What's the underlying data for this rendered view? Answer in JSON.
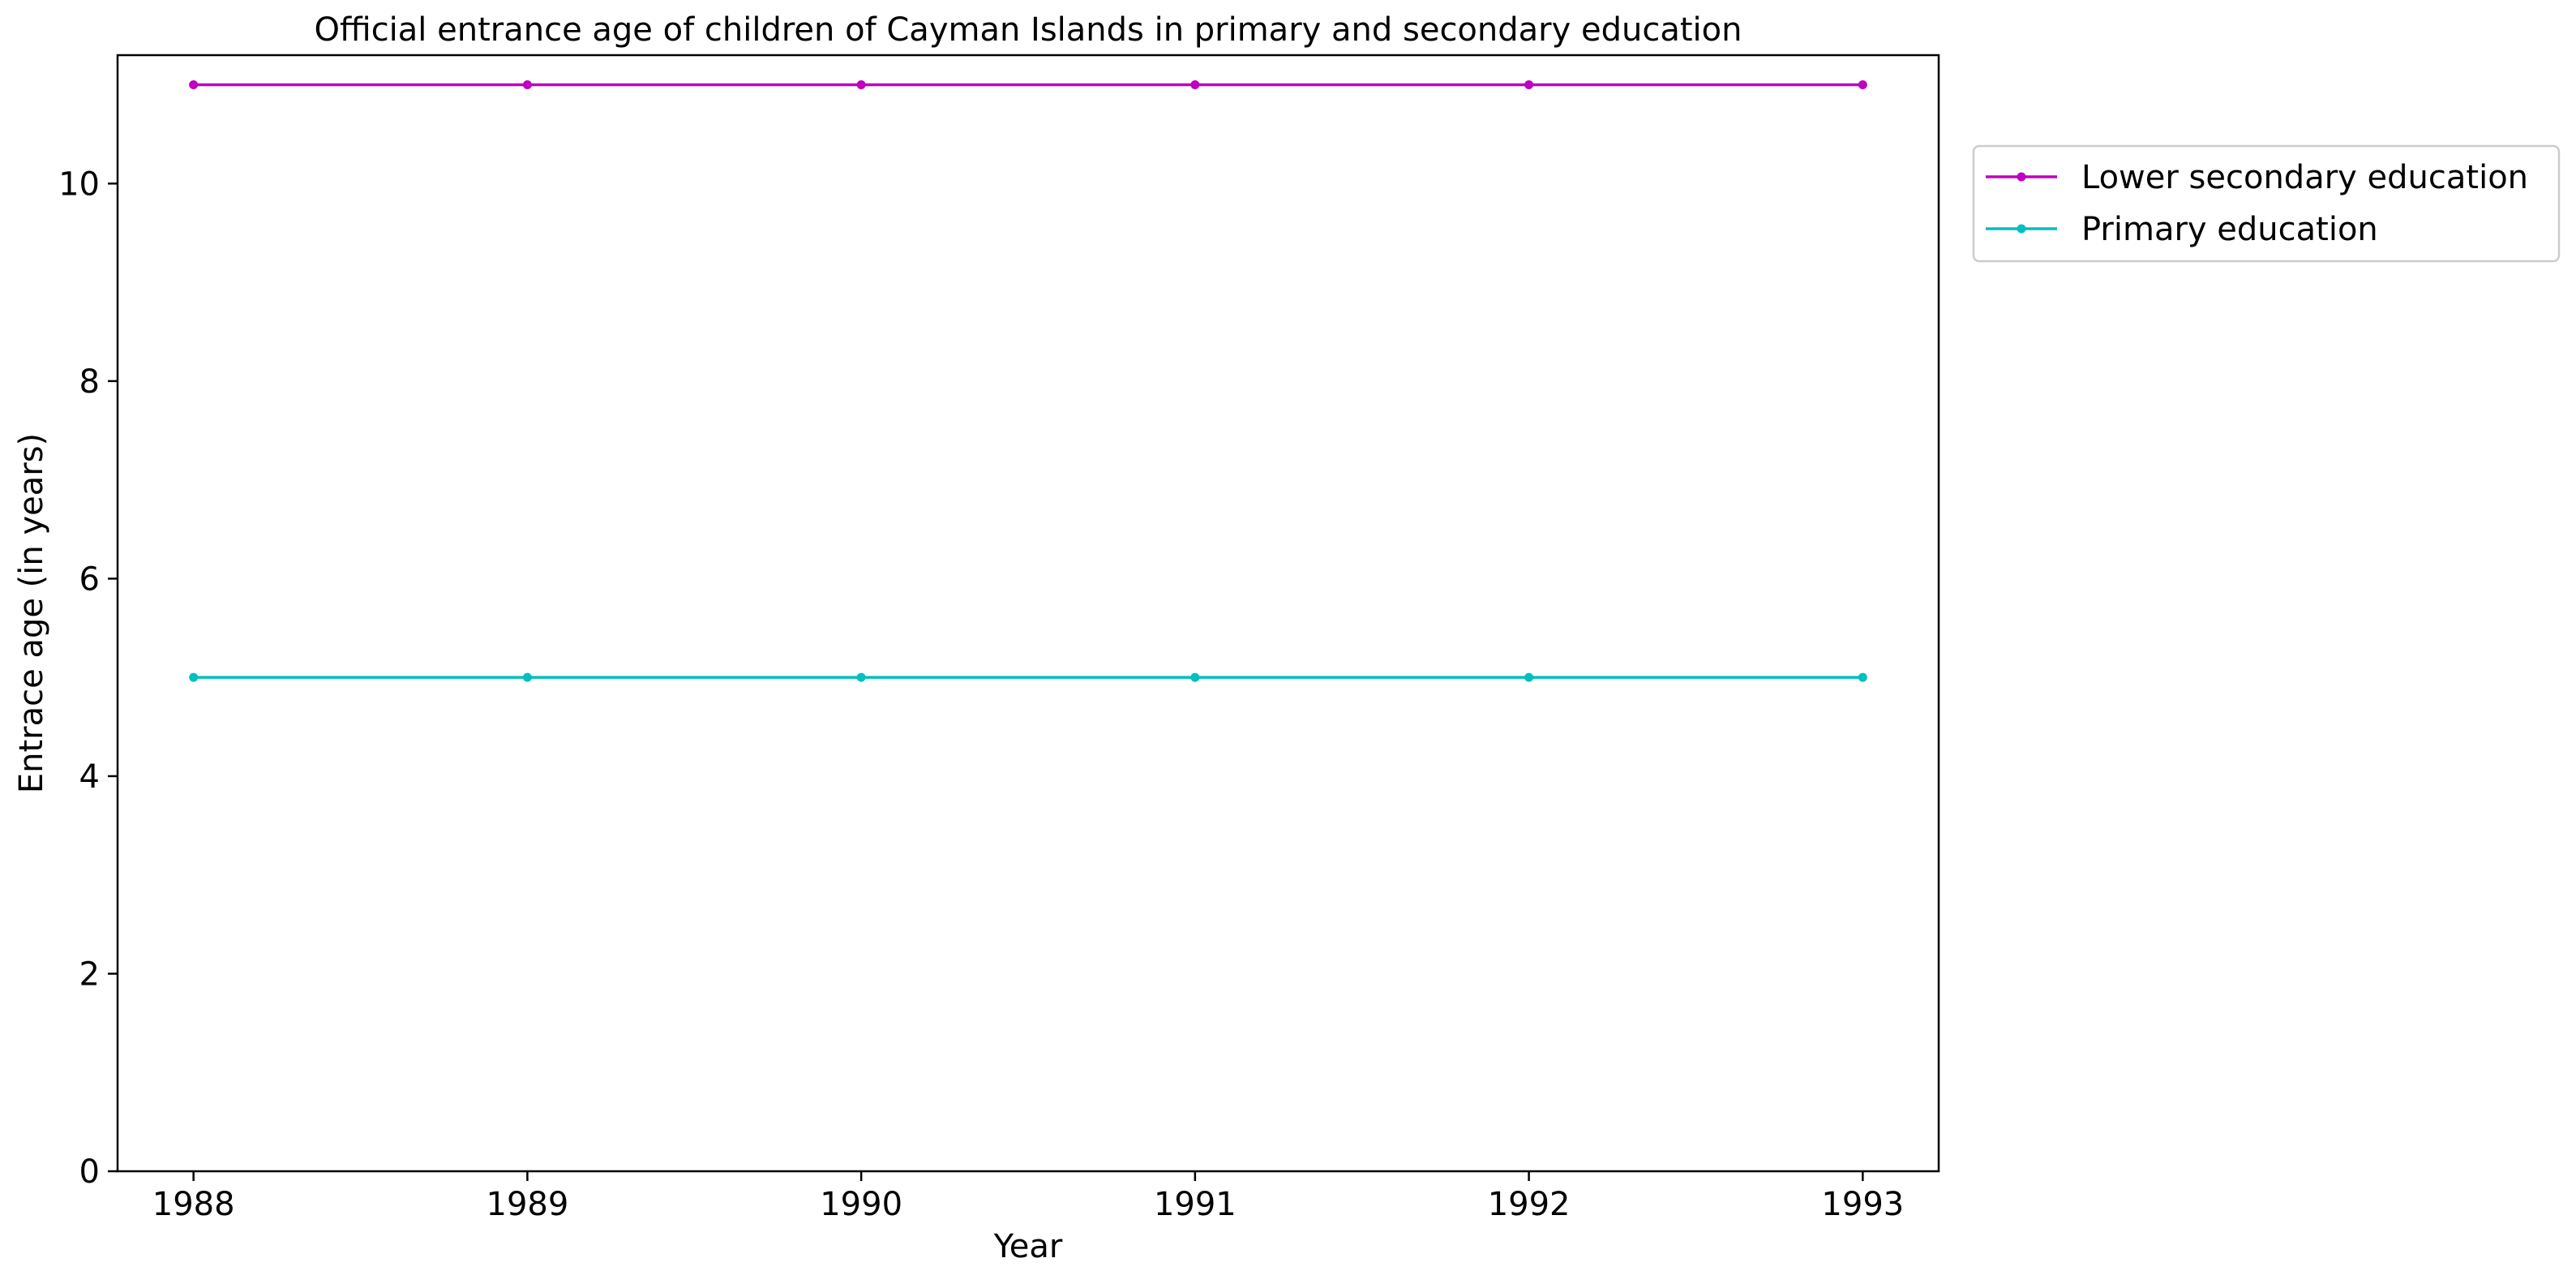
{
  "chart_data": {
    "type": "line",
    "title": "Official entrance age of children of Cayman Islands in primary and secondary education",
    "xlabel": "Year",
    "ylabel": "Entrace age (in  years)",
    "x": [
      1988,
      1989,
      1990,
      1991,
      1992,
      1993
    ],
    "x_tick_labels": [
      "1988",
      "1989",
      "1990",
      "1991",
      "1992",
      "1993"
    ],
    "ylim": [
      0,
      11.3
    ],
    "y_ticks": [
      0,
      2,
      4,
      6,
      8,
      10
    ],
    "y_tick_labels": [
      "0",
      "2",
      "4",
      "6",
      "8",
      "10"
    ],
    "grid": false,
    "legend_position": "outside-top-right",
    "series": [
      {
        "name": "Lower secondary education",
        "color": "#bf00bf",
        "values": [
          11,
          11,
          11,
          11,
          11,
          11
        ]
      },
      {
        "name": "Primary education",
        "color": "#00bfbf",
        "values": [
          5,
          5,
          5,
          5,
          5,
          5
        ]
      }
    ]
  }
}
